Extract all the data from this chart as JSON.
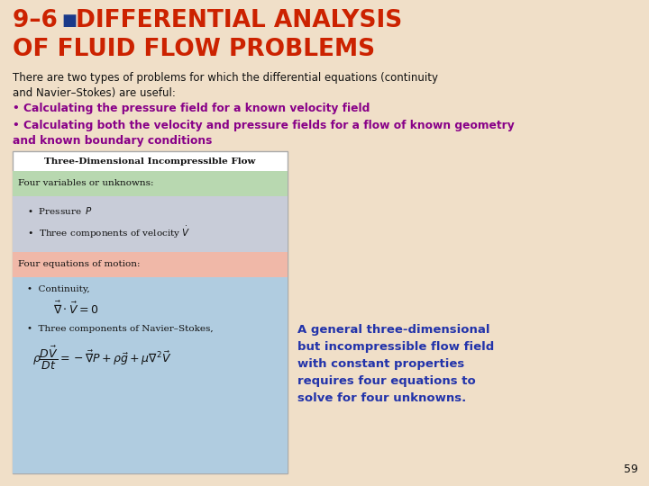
{
  "bg_color": "#f0dfc8",
  "title_color": "#cc2200",
  "square_color": "#1a3a8a",
  "body_color": "#111111",
  "bullet_color": "#880088",
  "box_title": "Three-Dimensional Incompressible Flow",
  "box_title_color": "#111111",
  "box_bg": "#ffffff",
  "box_border": "#aaaaaa",
  "green_bg": "#b8d8b0",
  "green_text": "Four variables or unknowns:",
  "grey_bg": "#c8ccd8",
  "pink_bg": "#f0b8a8",
  "pink_text": "Four equations of motion:",
  "blue_bg": "#b0cce0",
  "caption": "A general three-dimensional\nbut incompressible flow field\nwith constant properties\nrequires four equations to\nsolve for four unknowns.",
  "caption_color": "#2233aa",
  "page_num": "59",
  "page_color": "#111111"
}
